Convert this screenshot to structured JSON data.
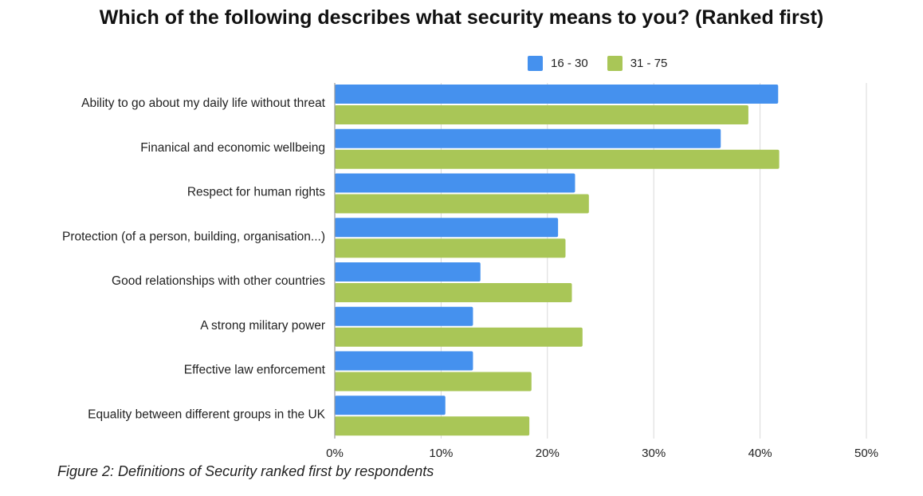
{
  "chart_data": {
    "type": "bar",
    "orientation": "horizontal",
    "title": "Which of the following describes what security means to you? (Ranked first)",
    "categories": [
      "Ability to go about my daily life without threat",
      "Finanical and economic wellbeing",
      "Respect for human rights",
      "Protection (of a person, building, organisation...)",
      "Good relationships with other countries",
      "A strong military power",
      "Effective law enforcement",
      "Equality between different groups in the UK"
    ],
    "series": [
      {
        "name": "16 - 30",
        "color": "#4591EE",
        "values": [
          41.7,
          36.3,
          22.6,
          21.0,
          13.7,
          13.0,
          13.0,
          10.4
        ]
      },
      {
        "name": "31 - 75",
        "color": "#A9C657",
        "values": [
          38.9,
          41.8,
          23.9,
          21.7,
          22.3,
          23.3,
          18.5,
          18.3
        ]
      }
    ],
    "xlim": [
      0,
      50
    ],
    "x_ticks": [
      "0%",
      "10%",
      "20%",
      "30%",
      "40%",
      "50%"
    ],
    "grid": true,
    "legend_position": "top"
  },
  "caption": "Figure 2: Definitions of Security ranked first by respondents"
}
